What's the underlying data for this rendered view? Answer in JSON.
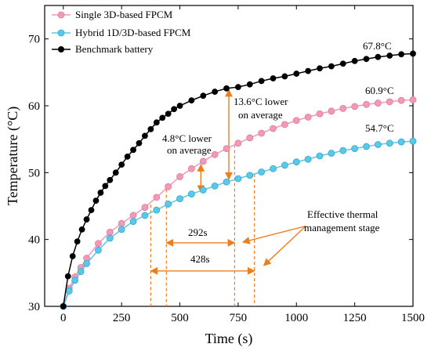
{
  "chart_data": {
    "type": "line",
    "xlabel": "Time (s)",
    "ylabel": "Temperature (°C)",
    "xlim": [
      -80,
      1500
    ],
    "ylim": [
      30,
      75
    ],
    "xticks": [
      0,
      250,
      500,
      750,
      1000,
      1250,
      1500
    ],
    "yticks": [
      30,
      40,
      50,
      60,
      70
    ],
    "grid": false,
    "legend_position": "top-left",
    "series": [
      {
        "name": "Single 3D-based FPCM",
        "color": "#f09ab8",
        "marker": "circle",
        "x": [
          0,
          25,
          50,
          75,
          100,
          150,
          200,
          250,
          300,
          350,
          400,
          450,
          500,
          550,
          600,
          650,
          700,
          750,
          800,
          850,
          900,
          950,
          1000,
          1050,
          1100,
          1150,
          1200,
          1250,
          1300,
          1350,
          1400,
          1450,
          1500
        ],
        "y": [
          30.0,
          32.7,
          34.4,
          35.8,
          37.2,
          39.4,
          41.1,
          42.4,
          43.6,
          44.8,
          46.3,
          47.9,
          49.4,
          50.6,
          51.7,
          52.7,
          53.6,
          54.4,
          55.2,
          55.9,
          56.6,
          57.2,
          57.8,
          58.3,
          58.8,
          59.2,
          59.6,
          59.9,
          60.2,
          60.4,
          60.6,
          60.8,
          60.9
        ]
      },
      {
        "name": "Hybrid 1D/3D-based FPCM",
        "color": "#5cc8e8",
        "marker": "circle",
        "x": [
          0,
          25,
          50,
          75,
          100,
          150,
          200,
          250,
          300,
          350,
          400,
          450,
          500,
          550,
          600,
          650,
          700,
          750,
          800,
          850,
          900,
          950,
          1000,
          1050,
          1100,
          1150,
          1200,
          1250,
          1300,
          1350,
          1400,
          1450,
          1500
        ],
        "y": [
          30.0,
          32.3,
          33.9,
          35.2,
          36.4,
          38.4,
          40.2,
          41.5,
          42.7,
          43.6,
          44.4,
          45.3,
          46.1,
          46.8,
          47.4,
          48.0,
          48.6,
          49.1,
          49.6,
          50.1,
          50.6,
          51.1,
          51.6,
          52.0,
          52.5,
          52.9,
          53.3,
          53.6,
          53.9,
          54.2,
          54.4,
          54.6,
          54.7
        ]
      },
      {
        "name": "Benchmark battery",
        "color": "#000000",
        "marker": "circle",
        "x": [
          0,
          20,
          40,
          60,
          80,
          100,
          120,
          140,
          160,
          180,
          200,
          225,
          250,
          275,
          300,
          325,
          350,
          375,
          400,
          425,
          450,
          475,
          500,
          550,
          600,
          650,
          700,
          750,
          800,
          850,
          900,
          950,
          1000,
          1050,
          1100,
          1150,
          1200,
          1250,
          1300,
          1350,
          1400,
          1450,
          1500
        ],
        "y": [
          30.0,
          34.5,
          37.5,
          39.7,
          41.5,
          43.0,
          44.4,
          45.8,
          47.0,
          48.0,
          48.9,
          50.0,
          51.2,
          52.4,
          53.4,
          54.4,
          55.5,
          56.5,
          57.5,
          58.2,
          58.8,
          59.5,
          60.0,
          60.8,
          61.5,
          62.1,
          62.6,
          62.8,
          63.2,
          63.7,
          64.1,
          64.4,
          64.8,
          65.2,
          65.6,
          65.9,
          66.3,
          66.7,
          67.0,
          67.3,
          67.5,
          67.7,
          67.8
        ]
      }
    ],
    "annotations": {
      "end_labels": [
        "67.8°C",
        "60.9°C",
        "54.7°C"
      ],
      "diff_small_line1": "4.8°C lower",
      "diff_small_line2": "on average",
      "diff_large_line1": "13.6°C lower",
      "diff_large_line2": "on average",
      "stage_label_line1": "Effective thermal",
      "stage_label_line2": "management stage",
      "duration_short": "292s",
      "duration_long": "428s"
    }
  }
}
